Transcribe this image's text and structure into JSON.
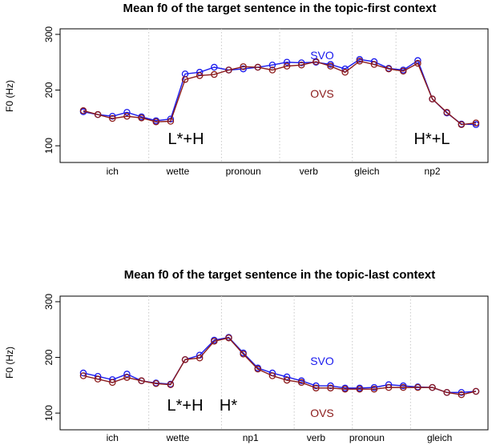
{
  "colors": {
    "svo": "#1a1aee",
    "ovs": "#8b1a1a",
    "vgrid": "#c8c8c8"
  },
  "chart_data": [
    {
      "type": "line",
      "title": "Mean f0 of the target sentence in the topic-first context",
      "ylabel": "F0 (Hz)",
      "ylim": [
        70,
        310
      ],
      "yticks": [
        100,
        200,
        300
      ],
      "categories": [
        "ich",
        "wette",
        "pronoun",
        "verb",
        "gleich",
        "np2"
      ],
      "category_centers": [
        3.0,
        7.5,
        12.0,
        16.5,
        20.5,
        25.0
      ],
      "separators": [
        5,
        10,
        14,
        19,
        22
      ],
      "x": [
        1,
        2,
        3,
        4,
        5,
        6,
        7,
        8,
        9,
        10,
        11,
        12,
        13,
        14,
        15,
        16,
        17,
        18,
        19,
        20,
        21,
        22,
        23,
        24,
        25,
        26,
        27,
        28
      ],
      "series": [
        {
          "name": "SVO",
          "values": [
            161,
            156,
            153,
            160,
            152,
            145,
            148,
            229,
            232,
            241,
            236,
            238,
            241,
            245,
            250,
            249,
            250,
            246,
            238,
            255,
            251,
            239,
            236,
            253,
            184,
            159,
            139,
            138
          ]
        },
        {
          "name": "OVS",
          "values": [
            163,
            156,
            149,
            153,
            150,
            143,
            144,
            219,
            226,
            228,
            236,
            242,
            241,
            236,
            243,
            245,
            251,
            243,
            232,
            252,
            246,
            238,
            234,
            248,
            184,
            160,
            138,
            141
          ]
        }
      ],
      "annotations": [
        "L*+H",
        "H*+L"
      ]
    },
    {
      "type": "line",
      "title": "Mean f0 of the target sentence in the topic-last context",
      "ylabel": "F0 (Hz)",
      "ylim": [
        70,
        310
      ],
      "yticks": [
        100,
        200,
        300
      ],
      "categories": [
        "ich",
        "wette",
        "np1",
        "verb",
        "pronoun",
        "gleich"
      ],
      "category_centers": [
        3.0,
        7.5,
        12.5,
        17.0,
        20.5,
        25.5
      ],
      "separators": [
        5,
        10,
        15,
        19,
        23
      ],
      "x": [
        1,
        2,
        3,
        4,
        5,
        6,
        7,
        8,
        9,
        10,
        11,
        12,
        13,
        14,
        15,
        16,
        17,
        18,
        19,
        20,
        21,
        22,
        23,
        24,
        25,
        26,
        27,
        28
      ],
      "series": [
        {
          "name": "SVO",
          "values": [
            172,
            166,
            160,
            170,
            158,
            154,
            152,
            196,
            204,
            231,
            236,
            208,
            181,
            172,
            165,
            158,
            149,
            149,
            145,
            145,
            146,
            151,
            149,
            147,
            146,
            137,
            137,
            139
          ]
        },
        {
          "name": "OVS",
          "values": [
            167,
            161,
            155,
            164,
            158,
            153,
            151,
            196,
            199,
            229,
            235,
            206,
            179,
            167,
            159,
            155,
            145,
            145,
            143,
            143,
            143,
            146,
            146,
            146,
            146,
            137,
            133,
            139
          ]
        }
      ],
      "annotations": [
        "L*+H",
        "H*"
      ]
    }
  ]
}
